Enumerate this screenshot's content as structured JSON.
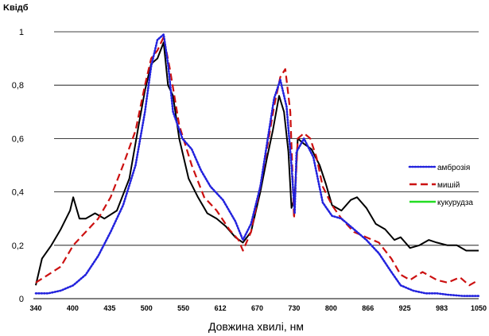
{
  "chart_data": {
    "type": "line",
    "ylabel": "Kвідб",
    "xlabel": "Довжина хвилі, нм",
    "xlim": [
      340,
      1050
    ],
    "ylim": [
      0,
      1
    ],
    "y_ticks": [
      "0",
      "0,2",
      "0,4",
      "0,6",
      "0,8",
      "1"
    ],
    "y_tick_values": [
      0,
      0.2,
      0.4,
      0.6,
      0.8,
      1
    ],
    "x_ticks": [
      "340",
      "400",
      "435",
      "500",
      "550",
      "612",
      "670",
      "730",
      "800",
      "866",
      "925",
      "983",
      "1050"
    ],
    "grid": "horizontal",
    "legend_position": "right",
    "series": [
      {
        "name": "амброзія",
        "color": "#2222dd",
        "style": "dotted",
        "points": [
          [
            340,
            0.02
          ],
          [
            360,
            0.02
          ],
          [
            380,
            0.03
          ],
          [
            400,
            0.05
          ],
          [
            420,
            0.09
          ],
          [
            440,
            0.16
          ],
          [
            460,
            0.25
          ],
          [
            480,
            0.35
          ],
          [
            500,
            0.5
          ],
          [
            515,
            0.7
          ],
          [
            525,
            0.87
          ],
          [
            535,
            0.97
          ],
          [
            545,
            0.99
          ],
          [
            552,
            0.88
          ],
          [
            560,
            0.7
          ],
          [
            575,
            0.6
          ],
          [
            590,
            0.56
          ],
          [
            605,
            0.48
          ],
          [
            620,
            0.42
          ],
          [
            640,
            0.37
          ],
          [
            660,
            0.29
          ],
          [
            672,
            0.22
          ],
          [
            685,
            0.28
          ],
          [
            700,
            0.42
          ],
          [
            712,
            0.6
          ],
          [
            722,
            0.75
          ],
          [
            732,
            0.82
          ],
          [
            742,
            0.72
          ],
          [
            750,
            0.5
          ],
          [
            755,
            0.32
          ],
          [
            758,
            0.55
          ],
          [
            770,
            0.6
          ],
          [
            785,
            0.53
          ],
          [
            800,
            0.36
          ],
          [
            815,
            0.31
          ],
          [
            830,
            0.3
          ],
          [
            850,
            0.26
          ],
          [
            870,
            0.22
          ],
          [
            890,
            0.17
          ],
          [
            910,
            0.1
          ],
          [
            925,
            0.05
          ],
          [
            945,
            0.03
          ],
          [
            965,
            0.02
          ],
          [
            983,
            0.02
          ],
          [
            1000,
            0.015
          ],
          [
            1025,
            0.01
          ],
          [
            1050,
            0.01
          ]
        ]
      },
      {
        "name": "мишій",
        "color": "#cc1111",
        "style": "dashed",
        "points": [
          [
            340,
            0.06
          ],
          [
            360,
            0.09
          ],
          [
            380,
            0.12
          ],
          [
            400,
            0.2
          ],
          [
            420,
            0.25
          ],
          [
            440,
            0.3
          ],
          [
            460,
            0.38
          ],
          [
            480,
            0.5
          ],
          [
            500,
            0.63
          ],
          [
            515,
            0.8
          ],
          [
            525,
            0.9
          ],
          [
            535,
            0.93
          ],
          [
            545,
            0.98
          ],
          [
            555,
            0.86
          ],
          [
            570,
            0.65
          ],
          [
            590,
            0.5
          ],
          [
            610,
            0.38
          ],
          [
            630,
            0.33
          ],
          [
            650,
            0.26
          ],
          [
            665,
            0.22
          ],
          [
            672,
            0.18
          ],
          [
            685,
            0.25
          ],
          [
            700,
            0.42
          ],
          [
            712,
            0.58
          ],
          [
            722,
            0.72
          ],
          [
            732,
            0.83
          ],
          [
            740,
            0.86
          ],
          [
            748,
            0.7
          ],
          [
            754,
            0.3
          ],
          [
            760,
            0.6
          ],
          [
            770,
            0.62
          ],
          [
            780,
            0.6
          ],
          [
            790,
            0.53
          ],
          [
            800,
            0.42
          ],
          [
            815,
            0.35
          ],
          [
            830,
            0.3
          ],
          [
            850,
            0.25
          ],
          [
            870,
            0.23
          ],
          [
            890,
            0.21
          ],
          [
            910,
            0.15
          ],
          [
            925,
            0.09
          ],
          [
            940,
            0.07
          ],
          [
            960,
            0.1
          ],
          [
            983,
            0.07
          ],
          [
            1000,
            0.06
          ],
          [
            1020,
            0.08
          ],
          [
            1035,
            0.05
          ],
          [
            1050,
            0.07
          ]
        ]
      },
      {
        "name": "кукурудза",
        "color": "#000000",
        "style": "solid",
        "points": [
          [
            340,
            0.05
          ],
          [
            350,
            0.15
          ],
          [
            365,
            0.2
          ],
          [
            380,
            0.26
          ],
          [
            395,
            0.33
          ],
          [
            400,
            0.38
          ],
          [
            410,
            0.3
          ],
          [
            420,
            0.3
          ],
          [
            435,
            0.32
          ],
          [
            450,
            0.3
          ],
          [
            470,
            0.33
          ],
          [
            490,
            0.45
          ],
          [
            505,
            0.65
          ],
          [
            515,
            0.78
          ],
          [
            525,
            0.88
          ],
          [
            535,
            0.9
          ],
          [
            545,
            0.96
          ],
          [
            552,
            0.8
          ],
          [
            560,
            0.76
          ],
          [
            570,
            0.6
          ],
          [
            585,
            0.45
          ],
          [
            600,
            0.38
          ],
          [
            615,
            0.32
          ],
          [
            630,
            0.3
          ],
          [
            645,
            0.27
          ],
          [
            660,
            0.23
          ],
          [
            672,
            0.21
          ],
          [
            685,
            0.25
          ],
          [
            700,
            0.4
          ],
          [
            710,
            0.52
          ],
          [
            720,
            0.63
          ],
          [
            730,
            0.76
          ],
          [
            738,
            0.7
          ],
          [
            745,
            0.55
          ],
          [
            750,
            0.34
          ],
          [
            755,
            0.38
          ],
          [
            760,
            0.6
          ],
          [
            770,
            0.58
          ],
          [
            782,
            0.56
          ],
          [
            795,
            0.5
          ],
          [
            805,
            0.43
          ],
          [
            815,
            0.35
          ],
          [
            830,
            0.33
          ],
          [
            845,
            0.37
          ],
          [
            855,
            0.38
          ],
          [
            870,
            0.34
          ],
          [
            885,
            0.28
          ],
          [
            900,
            0.26
          ],
          [
            915,
            0.22
          ],
          [
            925,
            0.23
          ],
          [
            940,
            0.19
          ],
          [
            955,
            0.2
          ],
          [
            970,
            0.22
          ],
          [
            983,
            0.21
          ],
          [
            1000,
            0.2
          ],
          [
            1015,
            0.2
          ],
          [
            1030,
            0.18
          ],
          [
            1050,
            0.18
          ]
        ]
      }
    ]
  }
}
